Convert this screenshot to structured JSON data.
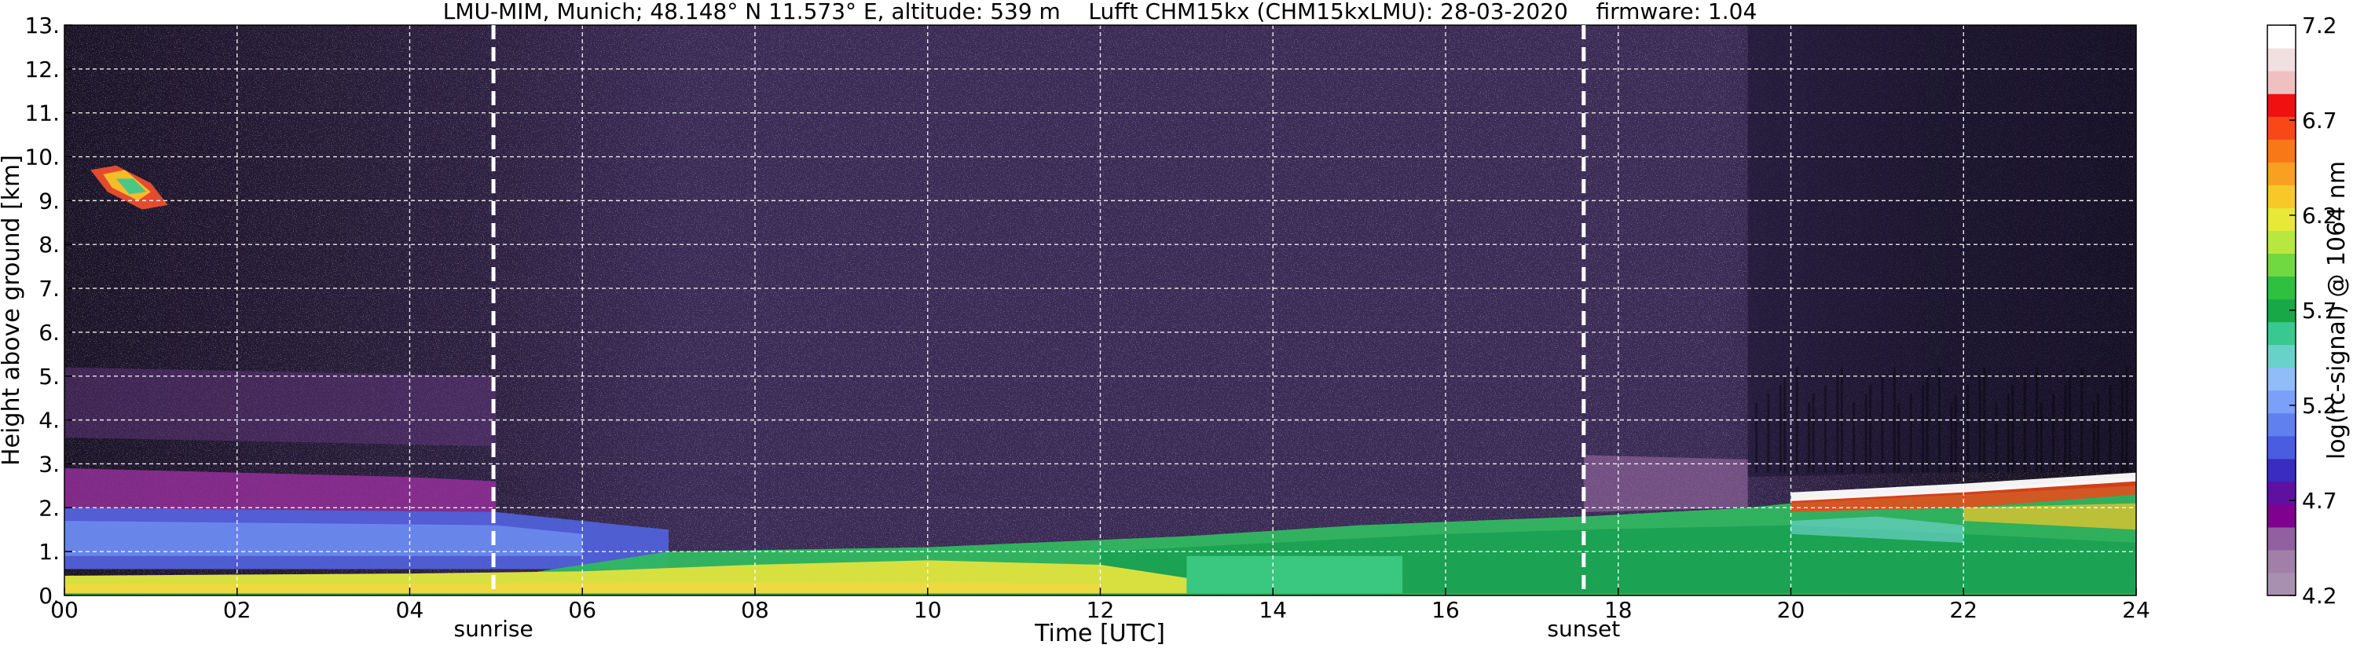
{
  "chart_data": {
    "type": "heatmap",
    "title": "LMU-MIM, Munich; 48.148° N 11.573° E, altitude: 539 m    Lufft CHM15kx (CHM15kxLMU): 28-03-2020    firmware: 1.04",
    "xlabel": "Time [UTC]",
    "ylabel": "Height above ground [km]",
    "xlim": [
      0,
      24
    ],
    "ylim": [
      0,
      13
    ],
    "x_ticks": [
      0,
      2,
      4,
      6,
      8,
      10,
      12,
      14,
      16,
      18,
      20,
      22,
      24
    ],
    "x_tick_labels": [
      "00",
      "02",
      "04",
      "06",
      "08",
      "10",
      "12",
      "14",
      "16",
      "18",
      "20",
      "22",
      "24"
    ],
    "y_ticks": [
      0,
      1,
      2,
      3,
      4,
      5,
      6,
      7,
      8,
      9,
      10,
      11,
      12,
      13
    ],
    "y_tick_labels": [
      "0.",
      "1.",
      "2.",
      "3.",
      "4.",
      "5.",
      "6.",
      "7.",
      "8.",
      "9.",
      "10.",
      "11.",
      "12.",
      "13."
    ],
    "grid": true,
    "markers": [
      {
        "label": "sunrise",
        "x": 4.97
      },
      {
        "label": "sunset",
        "x": 17.6
      }
    ],
    "colorbar": {
      "label": "log(rc-signal) @ 1064 nm",
      "range": [
        4.2,
        7.2
      ],
      "ticks": [
        4.2,
        4.7,
        5.2,
        5.7,
        6.2,
        6.7,
        7.2
      ],
      "tick_labels": [
        "4.2",
        "4.7",
        "5.2",
        "5.7",
        "6.2",
        "6.7",
        "7.2"
      ],
      "colors": [
        "#a890b0",
        "#a080a8",
        "#9060a0",
        "#800090",
        "#6010a0",
        "#3a2cc0",
        "#4a5ce0",
        "#6080f0",
        "#7aa0f8",
        "#90bcf8",
        "#68d2c8",
        "#38c890",
        "#18a848",
        "#30c040",
        "#70d840",
        "#b8e840",
        "#e8e838",
        "#f8c828",
        "#f8a020",
        "#f87818",
        "#f84818",
        "#f01010",
        "#f0c0c0",
        "#f0e0e0",
        "#ffffff"
      ]
    },
    "layers_description_colors": {
      "background_noise": "#3a2a55",
      "upper_sky_night": "#1a1430",
      "residual_layer": "#5060d8",
      "surface_aerosol": "#d8e040",
      "boundary_layer_day": "#30b860",
      "cloud_top_evening": "#ffffff"
    }
  }
}
